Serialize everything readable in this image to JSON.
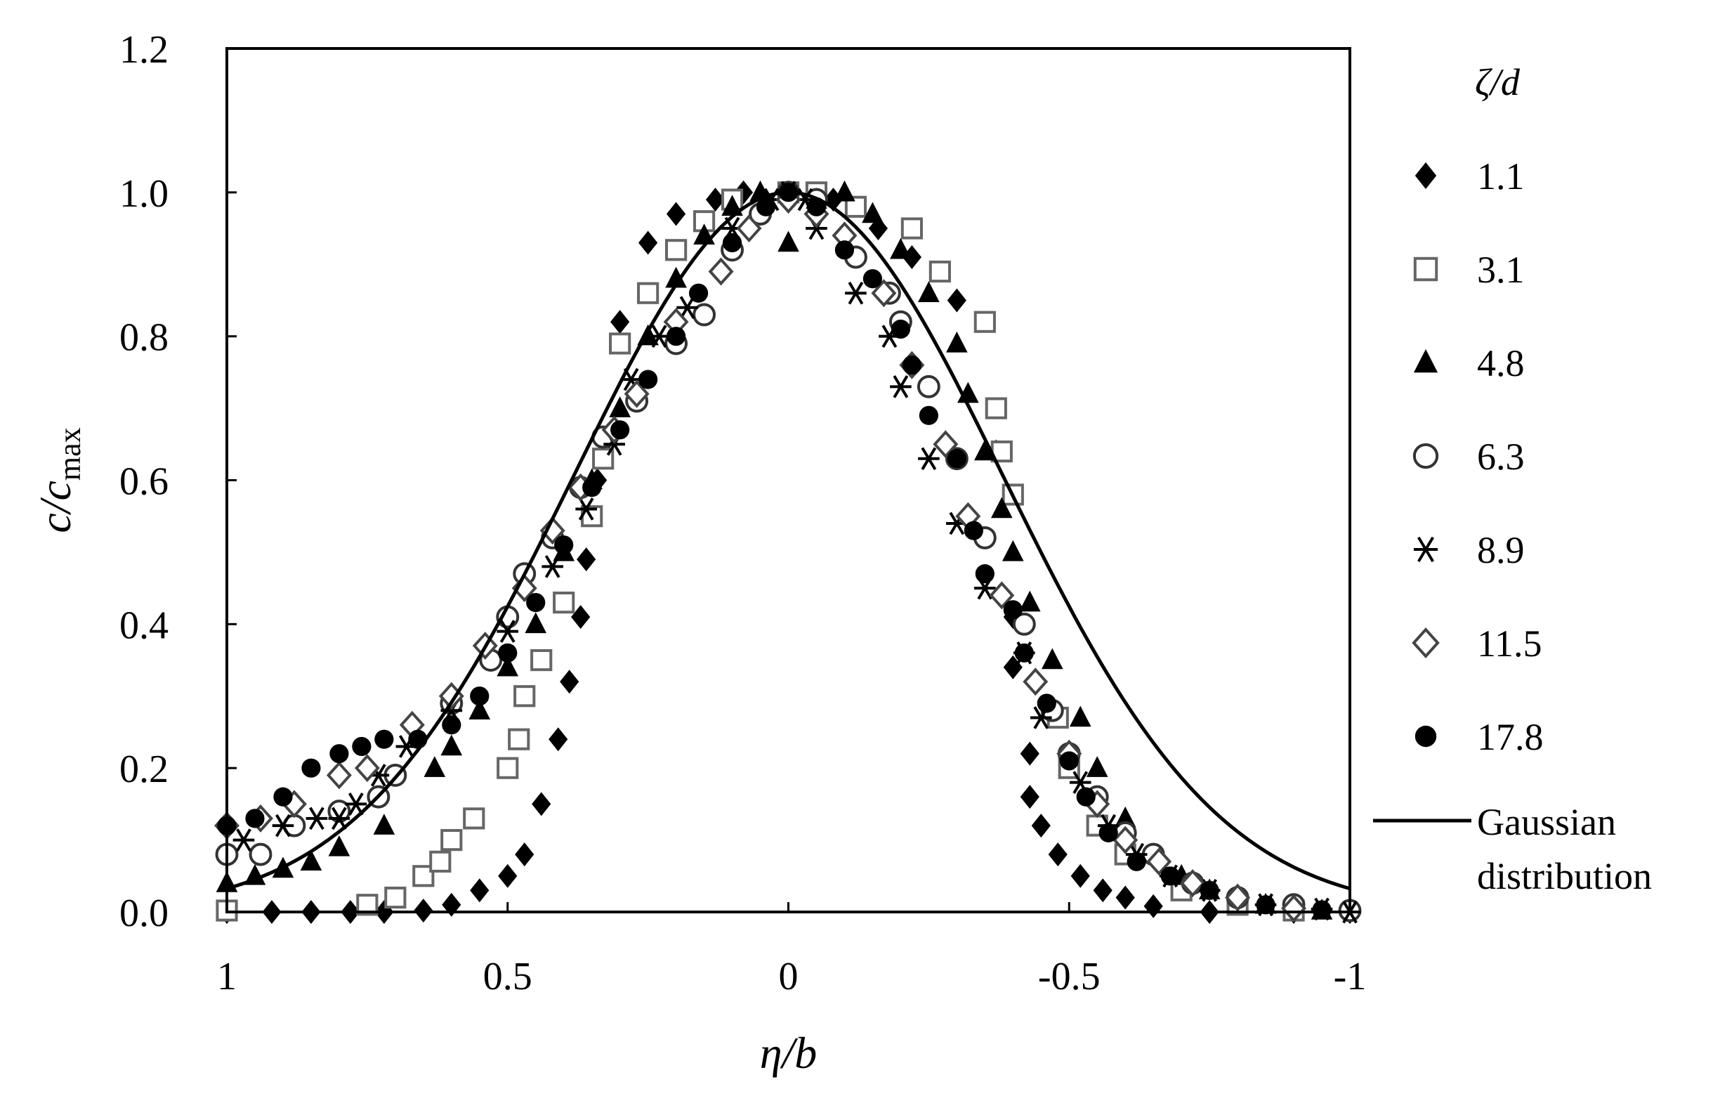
{
  "chart_data": {
    "type": "scatter",
    "xlabel": {
      "main": "η/b"
    },
    "ylabel": {
      "main": "c/c",
      "sub": "max"
    },
    "xlim": [
      1,
      -1
    ],
    "ylim": [
      0,
      1.2
    ],
    "x_reversed": true,
    "xticks": [
      {
        "value": 1,
        "label": "1"
      },
      {
        "value": 0.5,
        "label": "0.5"
      },
      {
        "value": 0,
        "label": "0"
      },
      {
        "value": -0.5,
        "label": "-0.5"
      },
      {
        "value": -1,
        "label": "-1"
      }
    ],
    "yticks": [
      {
        "value": 0,
        "label": "0.0"
      },
      {
        "value": 0.2,
        "label": "0.2"
      },
      {
        "value": 0.4,
        "label": "0.4"
      },
      {
        "value": 0.6,
        "label": "0.6"
      },
      {
        "value": 0.8,
        "label": "0.8"
      },
      {
        "value": 1.0,
        "label": "1.0"
      },
      {
        "value": 1.2,
        "label": "1.2"
      }
    ],
    "grid": false,
    "legend_position": "right",
    "legend_title": "ζ/d",
    "series": [
      {
        "name": "1.1",
        "marker": "diamond-filled",
        "points": [
          [
            1,
            0
          ],
          [
            0.92,
            0
          ],
          [
            0.85,
            0
          ],
          [
            0.78,
            0
          ],
          [
            0.72,
            0
          ],
          [
            0.65,
            0.002
          ],
          [
            0.6,
            0.01
          ],
          [
            0.55,
            0.03
          ],
          [
            0.5,
            0.05
          ],
          [
            0.47,
            0.08
          ],
          [
            0.44,
            0.15
          ],
          [
            0.41,
            0.24
          ],
          [
            0.39,
            0.32
          ],
          [
            0.37,
            0.41
          ],
          [
            0.36,
            0.49
          ],
          [
            0.34,
            0.6
          ],
          [
            0.32,
            0.66
          ],
          [
            0.3,
            0.82
          ],
          [
            0.25,
            0.93
          ],
          [
            0.2,
            0.97
          ],
          [
            0.13,
            0.99
          ],
          [
            0.08,
            1.0
          ],
          [
            0,
            1.0
          ],
          [
            -0.08,
            0.99
          ],
          [
            -0.16,
            0.95
          ],
          [
            -0.22,
            0.91
          ],
          [
            -0.3,
            0.85
          ],
          [
            -0.37,
            0.64
          ],
          [
            -0.4,
            0.41
          ],
          [
            -0.4,
            0.34
          ],
          [
            -0.43,
            0.22
          ],
          [
            -0.43,
            0.16
          ],
          [
            -0.45,
            0.12
          ],
          [
            -0.48,
            0.08
          ],
          [
            -0.52,
            0.05
          ],
          [
            -0.56,
            0.03
          ],
          [
            -0.6,
            0.02
          ],
          [
            -0.65,
            0.008
          ],
          [
            -0.75,
            0
          ],
          [
            -0.9,
            0
          ],
          [
            -1,
            0
          ]
        ]
      },
      {
        "name": "3.1",
        "marker": "square-open",
        "points": [
          [
            1,
            0.002
          ],
          [
            0.75,
            0.01
          ],
          [
            0.7,
            0.02
          ],
          [
            0.65,
            0.05
          ],
          [
            0.62,
            0.07
          ],
          [
            0.6,
            0.1
          ],
          [
            0.56,
            0.13
          ],
          [
            0.5,
            0.2
          ],
          [
            0.48,
            0.24
          ],
          [
            0.47,
            0.3
          ],
          [
            0.44,
            0.35
          ],
          [
            0.4,
            0.43
          ],
          [
            0.35,
            0.55
          ],
          [
            0.33,
            0.63
          ],
          [
            0.3,
            0.79
          ],
          [
            0.25,
            0.86
          ],
          [
            0.2,
            0.92
          ],
          [
            0.15,
            0.96
          ],
          [
            0.1,
            0.99
          ],
          [
            0,
            1.0
          ],
          [
            -0.05,
            1.0
          ],
          [
            -0.12,
            0.98
          ],
          [
            -0.22,
            0.95
          ],
          [
            -0.27,
            0.89
          ],
          [
            -0.35,
            0.82
          ],
          [
            -0.37,
            0.7
          ],
          [
            -0.38,
            0.64
          ],
          [
            -0.4,
            0.58
          ],
          [
            -0.48,
            0.27
          ],
          [
            -0.5,
            0.2
          ],
          [
            -0.55,
            0.12
          ],
          [
            -0.6,
            0.08
          ],
          [
            -0.7,
            0.03
          ],
          [
            -0.8,
            0.01
          ],
          [
            -0.9,
            0.002
          ]
        ]
      },
      {
        "name": "4.8",
        "marker": "triangle-filled",
        "points": [
          [
            1,
            0.04
          ],
          [
            0.95,
            0.05
          ],
          [
            0.9,
            0.06
          ],
          [
            0.85,
            0.07
          ],
          [
            0.8,
            0.09
          ],
          [
            0.72,
            0.12
          ],
          [
            0.63,
            0.2
          ],
          [
            0.6,
            0.23
          ],
          [
            0.55,
            0.28
          ],
          [
            0.5,
            0.34
          ],
          [
            0.45,
            0.4
          ],
          [
            0.4,
            0.5
          ],
          [
            0.35,
            0.6
          ],
          [
            0.3,
            0.7
          ],
          [
            0.25,
            0.8
          ],
          [
            0.2,
            0.88
          ],
          [
            0.15,
            0.94
          ],
          [
            0.1,
            0.98
          ],
          [
            0.05,
            1.0
          ],
          [
            0,
            0.93
          ],
          [
            -0.05,
            0.99
          ],
          [
            -0.1,
            1.0
          ],
          [
            -0.15,
            0.97
          ],
          [
            -0.2,
            0.92
          ],
          [
            -0.25,
            0.86
          ],
          [
            -0.3,
            0.79
          ],
          [
            -0.32,
            0.72
          ],
          [
            -0.35,
            0.64
          ],
          [
            -0.38,
            0.56
          ],
          [
            -0.4,
            0.5
          ],
          [
            -0.43,
            0.43
          ],
          [
            -0.47,
            0.35
          ],
          [
            -0.52,
            0.27
          ],
          [
            -0.55,
            0.2
          ],
          [
            -0.6,
            0.13
          ],
          [
            -0.65,
            0.08
          ],
          [
            -0.7,
            0.05
          ],
          [
            -0.75,
            0.03
          ],
          [
            -0.85,
            0.01
          ],
          [
            -0.95,
            0.002
          ]
        ]
      },
      {
        "name": "6.3",
        "marker": "circle-open",
        "points": [
          [
            1,
            0.08
          ],
          [
            0.94,
            0.08
          ],
          [
            0.88,
            0.12
          ],
          [
            0.8,
            0.14
          ],
          [
            0.73,
            0.16
          ],
          [
            0.7,
            0.19
          ],
          [
            0.6,
            0.29
          ],
          [
            0.53,
            0.35
          ],
          [
            0.5,
            0.41
          ],
          [
            0.47,
            0.47
          ],
          [
            0.42,
            0.52
          ],
          [
            0.37,
            0.59
          ],
          [
            0.33,
            0.66
          ],
          [
            0.27,
            0.71
          ],
          [
            0.2,
            0.79
          ],
          [
            0.15,
            0.83
          ],
          [
            0.1,
            0.92
          ],
          [
            0.05,
            0.97
          ],
          [
            0,
            1.0
          ],
          [
            -0.05,
            0.99
          ],
          [
            -0.12,
            0.91
          ],
          [
            -0.18,
            0.86
          ],
          [
            -0.2,
            0.82
          ],
          [
            -0.25,
            0.73
          ],
          [
            -0.3,
            0.63
          ],
          [
            -0.35,
            0.52
          ],
          [
            -0.42,
            0.4
          ],
          [
            -0.47,
            0.28
          ],
          [
            -0.5,
            0.22
          ],
          [
            -0.55,
            0.16
          ],
          [
            -0.6,
            0.11
          ],
          [
            -0.65,
            0.08
          ],
          [
            -0.72,
            0.04
          ],
          [
            -0.8,
            0.02
          ],
          [
            -0.9,
            0.01
          ],
          [
            -1,
            0.002
          ]
        ]
      },
      {
        "name": "8.9",
        "marker": "star",
        "points": [
          [
            0.97,
            0.1
          ],
          [
            0.9,
            0.12
          ],
          [
            0.84,
            0.13
          ],
          [
            0.8,
            0.13
          ],
          [
            0.77,
            0.15
          ],
          [
            0.73,
            0.19
          ],
          [
            0.68,
            0.23
          ],
          [
            0.6,
            0.28
          ],
          [
            0.5,
            0.39
          ],
          [
            0.42,
            0.48
          ],
          [
            0.36,
            0.56
          ],
          [
            0.31,
            0.65
          ],
          [
            0.28,
            0.74
          ],
          [
            0.23,
            0.8
          ],
          [
            0.18,
            0.84
          ],
          [
            0.1,
            0.95
          ],
          [
            0.03,
            0.99
          ],
          [
            0,
            1.0
          ],
          [
            -0.03,
            0.99
          ],
          [
            -0.05,
            0.95
          ],
          [
            -0.12,
            0.86
          ],
          [
            -0.18,
            0.8
          ],
          [
            -0.2,
            0.73
          ],
          [
            -0.25,
            0.63
          ],
          [
            -0.3,
            0.54
          ],
          [
            -0.35,
            0.45
          ],
          [
            -0.42,
            0.36
          ],
          [
            -0.45,
            0.27
          ],
          [
            -0.52,
            0.18
          ],
          [
            -0.57,
            0.12
          ],
          [
            -0.62,
            0.08
          ],
          [
            -0.68,
            0.05
          ],
          [
            -0.75,
            0.03
          ],
          [
            -0.85,
            0.01
          ],
          [
            -0.95,
            0.004
          ],
          [
            -1,
            0
          ]
        ]
      },
      {
        "name": "11.5",
        "marker": "diamond-open",
        "points": [
          [
            1,
            0.12
          ],
          [
            0.94,
            0.13
          ],
          [
            0.88,
            0.15
          ],
          [
            0.8,
            0.19
          ],
          [
            0.75,
            0.2
          ],
          [
            0.67,
            0.26
          ],
          [
            0.6,
            0.3
          ],
          [
            0.54,
            0.37
          ],
          [
            0.47,
            0.45
          ],
          [
            0.42,
            0.53
          ],
          [
            0.37,
            0.59
          ],
          [
            0.31,
            0.67
          ],
          [
            0.27,
            0.72
          ],
          [
            0.2,
            0.82
          ],
          [
            0.12,
            0.89
          ],
          [
            0.07,
            0.95
          ],
          [
            0,
            0.99
          ],
          [
            -0.05,
            0.97
          ],
          [
            -0.1,
            0.94
          ],
          [
            -0.17,
            0.86
          ],
          [
            -0.22,
            0.76
          ],
          [
            -0.28,
            0.65
          ],
          [
            -0.32,
            0.55
          ],
          [
            -0.38,
            0.44
          ],
          [
            -0.44,
            0.32
          ],
          [
            -0.5,
            0.22
          ],
          [
            -0.55,
            0.15
          ],
          [
            -0.6,
            0.1
          ],
          [
            -0.66,
            0.07
          ],
          [
            -0.72,
            0.04
          ],
          [
            -0.8,
            0.02
          ],
          [
            -0.9,
            0.005
          ]
        ]
      },
      {
        "name": "17.8",
        "marker": "circle-filled",
        "points": [
          [
            1,
            0.12
          ],
          [
            0.95,
            0.13
          ],
          [
            0.9,
            0.16
          ],
          [
            0.85,
            0.2
          ],
          [
            0.8,
            0.22
          ],
          [
            0.76,
            0.23
          ],
          [
            0.72,
            0.24
          ],
          [
            0.66,
            0.24
          ],
          [
            0.6,
            0.26
          ],
          [
            0.55,
            0.3
          ],
          [
            0.5,
            0.36
          ],
          [
            0.45,
            0.43
          ],
          [
            0.4,
            0.51
          ],
          [
            0.35,
            0.59
          ],
          [
            0.3,
            0.67
          ],
          [
            0.25,
            0.74
          ],
          [
            0.2,
            0.8
          ],
          [
            0.16,
            0.86
          ],
          [
            0.1,
            0.93
          ],
          [
            0.04,
            0.98
          ],
          [
            0,
            1.0
          ],
          [
            -0.05,
            0.98
          ],
          [
            -0.1,
            0.92
          ],
          [
            -0.15,
            0.88
          ],
          [
            -0.2,
            0.81
          ],
          [
            -0.22,
            0.76
          ],
          [
            -0.25,
            0.69
          ],
          [
            -0.3,
            0.63
          ],
          [
            -0.33,
            0.53
          ],
          [
            -0.35,
            0.47
          ],
          [
            -0.4,
            0.42
          ],
          [
            -0.42,
            0.36
          ],
          [
            -0.46,
            0.29
          ],
          [
            -0.5,
            0.21
          ],
          [
            -0.53,
            0.16
          ],
          [
            -0.57,
            0.11
          ],
          [
            -0.62,
            0.07
          ],
          [
            -0.68,
            0.05
          ],
          [
            -0.75,
            0.03
          ],
          [
            -0.85,
            0.01
          ],
          [
            -0.95,
            0.003
          ]
        ]
      },
      {
        "name": {
          "line1": "Gaussian",
          "line2": "distribution"
        },
        "marker": "line",
        "sigma": 0.382
      }
    ]
  }
}
